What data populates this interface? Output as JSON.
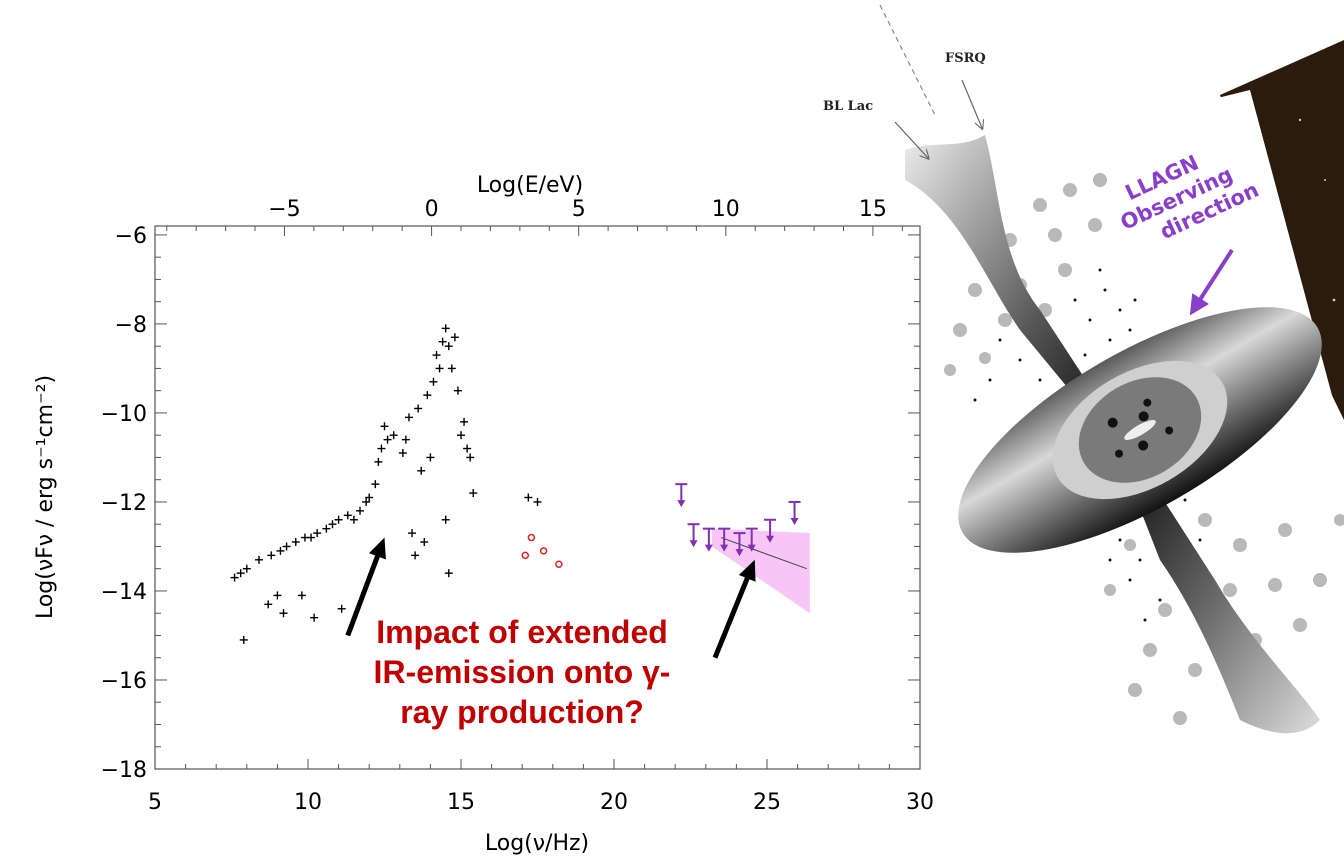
{
  "chart_data": {
    "type": "scatter",
    "xlabel": "Log(ν/Hz)",
    "ylabel": "Log(νFν / erg s⁻¹cm⁻²)",
    "top_axis_label": "Log(E/eV)",
    "xlim": [
      5,
      30
    ],
    "ylim": [
      -18,
      -5.8
    ],
    "top_xlim": [
      -9.4,
      16.6
    ],
    "x_ticks": [
      "5",
      "10",
      "15",
      "20",
      "25",
      "30"
    ],
    "y_ticks": [
      "−6",
      "−8",
      "−10",
      "−12",
      "−14",
      "−16",
      "−18"
    ],
    "top_ticks": [
      "−5",
      "0",
      "5",
      "10",
      "15"
    ],
    "series": [
      {
        "color": "#000000",
        "marker": "plus",
        "points": [
          [
            7.6,
            -13.7
          ],
          [
            7.8,
            -13.6
          ],
          [
            7.9,
            -15.1
          ],
          [
            8.0,
            -13.5
          ],
          [
            8.4,
            -13.3
          ],
          [
            8.7,
            -14.3
          ],
          [
            8.8,
            -13.2
          ],
          [
            9.0,
            -14.1
          ],
          [
            9.1,
            -13.1
          ],
          [
            9.2,
            -14.5
          ],
          [
            9.3,
            -13.0
          ],
          [
            9.6,
            -12.9
          ],
          [
            9.8,
            -14.1
          ],
          [
            9.9,
            -12.8
          ],
          [
            10.1,
            -12.8
          ],
          [
            10.2,
            -14.6
          ],
          [
            10.3,
            -12.7
          ],
          [
            10.6,
            -12.6
          ],
          [
            10.8,
            -12.5
          ],
          [
            11.0,
            -12.4
          ],
          [
            11.1,
            -14.4
          ],
          [
            11.3,
            -12.3
          ],
          [
            11.5,
            -12.4
          ],
          [
            11.7,
            -12.2
          ],
          [
            11.9,
            -12.0
          ],
          [
            12.0,
            -11.9
          ],
          [
            12.2,
            -11.6
          ],
          [
            12.3,
            -11.1
          ],
          [
            12.4,
            -10.8
          ],
          [
            12.5,
            -10.3
          ],
          [
            12.6,
            -10.6
          ],
          [
            12.8,
            -10.5
          ],
          [
            13.1,
            -10.9
          ],
          [
            13.2,
            -10.6
          ],
          [
            13.3,
            -10.1
          ],
          [
            13.4,
            -12.7
          ],
          [
            13.5,
            -13.2
          ],
          [
            13.6,
            -9.9
          ],
          [
            13.7,
            -11.3
          ],
          [
            13.8,
            -12.9
          ],
          [
            13.9,
            -9.6
          ],
          [
            14.0,
            -11.0
          ],
          [
            14.1,
            -9.3
          ],
          [
            14.2,
            -8.7
          ],
          [
            14.3,
            -9.0
          ],
          [
            14.4,
            -8.4
          ],
          [
            14.5,
            -8.1
          ],
          [
            14.6,
            -8.5
          ],
          [
            14.7,
            -9.0
          ],
          [
            14.8,
            -8.3
          ],
          [
            14.9,
            -9.5
          ],
          [
            15.0,
            -10.5
          ],
          [
            15.1,
            -10.2
          ],
          [
            15.2,
            -10.8
          ],
          [
            15.3,
            -11.0
          ],
          [
            15.4,
            -11.8
          ],
          [
            14.5,
            -12.4
          ],
          [
            14.6,
            -13.6
          ],
          [
            17.2,
            -11.9
          ],
          [
            17.5,
            -12.0
          ]
        ]
      },
      {
        "color": "#e02020",
        "marker": "circle",
        "points": [
          [
            17.1,
            -13.2
          ],
          [
            17.3,
            -12.8
          ],
          [
            17.7,
            -13.1
          ],
          [
            18.2,
            -13.4
          ]
        ]
      },
      {
        "color": "#8030b0",
        "marker": "upper-limit",
        "points": [
          [
            22.2,
            -11.6
          ],
          [
            22.6,
            -12.5
          ],
          [
            23.1,
            -12.6
          ],
          [
            23.6,
            -12.6
          ],
          [
            24.1,
            -12.7
          ],
          [
            24.5,
            -12.6
          ],
          [
            25.1,
            -12.4
          ],
          [
            25.9,
            -12.0
          ]
        ]
      }
    ],
    "shaded_region": {
      "color": "#f7c6f7",
      "x": [
        23.2,
        26.4
      ],
      "upper": [
        -12.6,
        -12.7
      ],
      "lower": [
        -13.0,
        -14.5
      ]
    },
    "fit_line": {
      "x": [
        23.5,
        26.3
      ],
      "y": [
        -12.8,
        -13.5
      ],
      "color": "#444444"
    },
    "annotation": {
      "lines": [
        "Impact of extended",
        "IR-emission onto γ-",
        "ray production?"
      ],
      "color": "#c00000"
    },
    "arrows": [
      {
        "from": [
          11.3,
          -15.0
        ],
        "to": [
          12.5,
          -12.8
        ]
      },
      {
        "from": [
          23.3,
          -15.5
        ],
        "to": [
          24.6,
          -13.3
        ]
      }
    ]
  },
  "schematic": {
    "labels": {
      "fsrq": "FSRQ",
      "bl_lac": "BL Lac",
      "llagn": [
        "LLAGN",
        "Observing",
        "direction"
      ]
    },
    "colors": {
      "llagn_label": "#8a3fc8",
      "arrow": "#8a3fc8"
    }
  }
}
